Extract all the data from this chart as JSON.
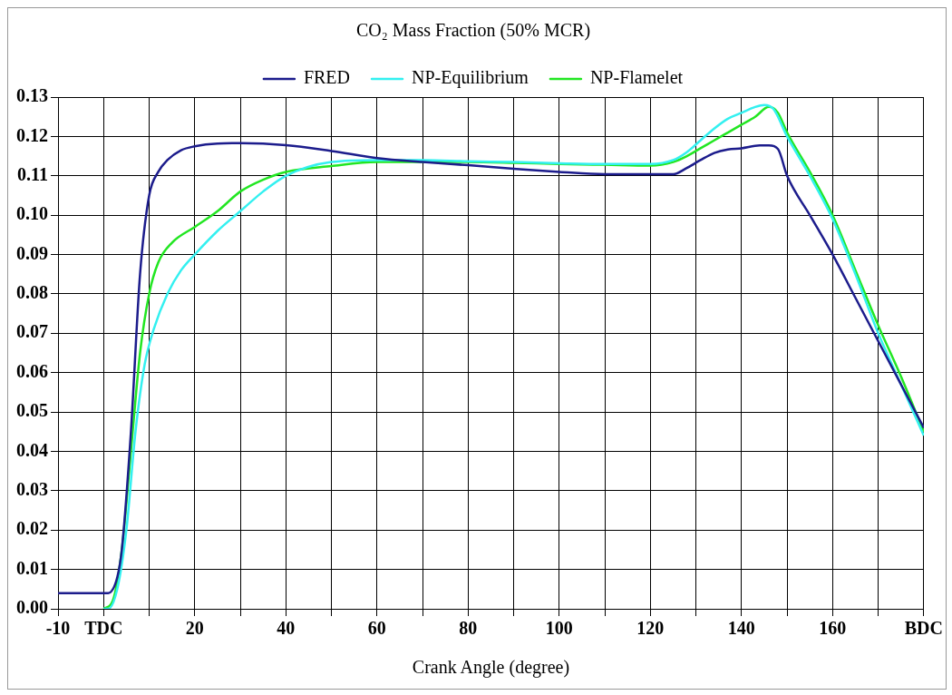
{
  "chart_data": {
    "type": "line",
    "title": "CO₂ Mass Fraction (50% MCR)",
    "xlabel": "Crank Angle (degree)",
    "legend": "top",
    "grid": true,
    "marker": "none",
    "line_style": "solid",
    "xlim": [
      -10,
      180
    ],
    "xticks": [
      -10,
      {
        "value": 0,
        "label": "TDC"
      },
      {
        "value": 10,
        "label": null
      },
      20,
      {
        "value": 30,
        "label": null
      },
      40,
      {
        "value": 50,
        "label": null
      },
      60,
      {
        "value": 70,
        "label": null
      },
      80,
      {
        "value": 90,
        "label": null
      },
      100,
      {
        "value": 110,
        "label": null
      },
      120,
      {
        "value": 130,
        "label": null
      },
      140,
      {
        "value": 150,
        "label": null
      },
      160,
      {
        "value": 170,
        "label": null
      },
      {
        "value": 180,
        "label": "BDC"
      }
    ],
    "ylim": [
      0,
      0.13
    ],
    "yticks": [
      {
        "value": 0,
        "label": "0.00"
      },
      {
        "value": 0.01,
        "label": "0.01"
      },
      {
        "value": 0.02,
        "label": "0.02"
      },
      {
        "value": 0.03,
        "label": "0.03"
      },
      {
        "value": 0.04,
        "label": "0.04"
      },
      {
        "value": 0.05,
        "label": "0.05"
      },
      {
        "value": 0.06,
        "label": "0.06"
      },
      {
        "value": 0.07,
        "label": "0.07"
      },
      {
        "value": 0.08,
        "label": "0.08"
      },
      {
        "value": 0.09,
        "label": "0.09"
      },
      {
        "value": 0.1,
        "label": "0.10"
      },
      {
        "value": 0.11,
        "label": "0.11"
      },
      {
        "value": 0.12,
        "label": "0.12"
      },
      {
        "value": 0.13,
        "label": "0.13"
      }
    ],
    "series": [
      {
        "name": "FRED",
        "color": "#1c1c8c",
        "x": [
          -10,
          0,
          1,
          3,
          4,
          6,
          8,
          10,
          12,
          14,
          17,
          20,
          25,
          30,
          40,
          50,
          60,
          70,
          80,
          90,
          100,
          110,
          120,
          125,
          128,
          131,
          134,
          137,
          140,
          144,
          146,
          148,
          150,
          155,
          160,
          165,
          170,
          175,
          180
        ],
        "values": [
          0.004,
          0.004,
          0.004,
          0.008,
          0.015,
          0.045,
          0.085,
          0.105,
          0.111,
          0.114,
          0.1165,
          0.1175,
          0.1182,
          0.1183,
          0.1178,
          0.1163,
          0.1145,
          0.1135,
          0.1127,
          0.1118,
          0.111,
          0.1104,
          0.1104,
          0.1104,
          0.112,
          0.114,
          0.1158,
          0.1167,
          0.117,
          0.1177,
          0.1177,
          0.1168,
          0.11,
          0.1,
          0.09,
          0.079,
          0.068,
          0.057,
          0.046
        ]
      },
      {
        "name": "NP-Equilibrium",
        "color": "#33f0f0",
        "x": [
          0,
          1,
          3,
          5,
          7,
          9,
          11,
          14,
          17,
          20,
          25,
          30,
          35,
          40,
          50,
          60,
          70,
          80,
          90,
          100,
          110,
          120,
          125,
          128,
          131,
          134,
          137,
          140,
          143,
          145,
          147,
          150,
          155,
          160,
          165,
          170,
          175,
          180
        ],
        "values": [
          0,
          0,
          0.005,
          0.02,
          0.045,
          0.062,
          0.071,
          0.08,
          0.086,
          0.09,
          0.096,
          0.101,
          0.106,
          0.11,
          0.1135,
          0.114,
          0.114,
          0.1137,
          0.1135,
          0.1132,
          0.113,
          0.113,
          0.114,
          0.116,
          0.119,
          0.122,
          0.1245,
          0.126,
          0.1275,
          0.128,
          0.127,
          0.12,
          0.11,
          0.099,
          0.085,
          0.07,
          0.057,
          0.044
        ]
      },
      {
        "name": "NP-Flamelet",
        "color": "#22e622",
        "x": [
          0,
          2,
          4,
          6,
          8,
          10,
          12,
          15,
          20,
          25,
          30,
          35,
          40,
          50,
          60,
          70,
          80,
          90,
          100,
          110,
          120,
          125,
          128,
          131,
          134,
          137,
          140,
          143,
          146,
          148,
          150,
          155,
          160,
          165,
          170,
          175,
          180
        ],
        "values": [
          0,
          0.002,
          0.015,
          0.04,
          0.065,
          0.08,
          0.088,
          0.093,
          0.097,
          0.101,
          0.106,
          0.109,
          0.111,
          0.1125,
          0.1135,
          null,
          0.1135,
          0.1133,
          0.113,
          0.1128,
          0.1126,
          0.1135,
          0.115,
          0.117,
          0.119,
          0.121,
          0.123,
          0.125,
          0.1275,
          0.126,
          0.121,
          0.111,
          0.1,
          0.086,
          0.072,
          0.059,
          0.045
        ]
      }
    ]
  }
}
